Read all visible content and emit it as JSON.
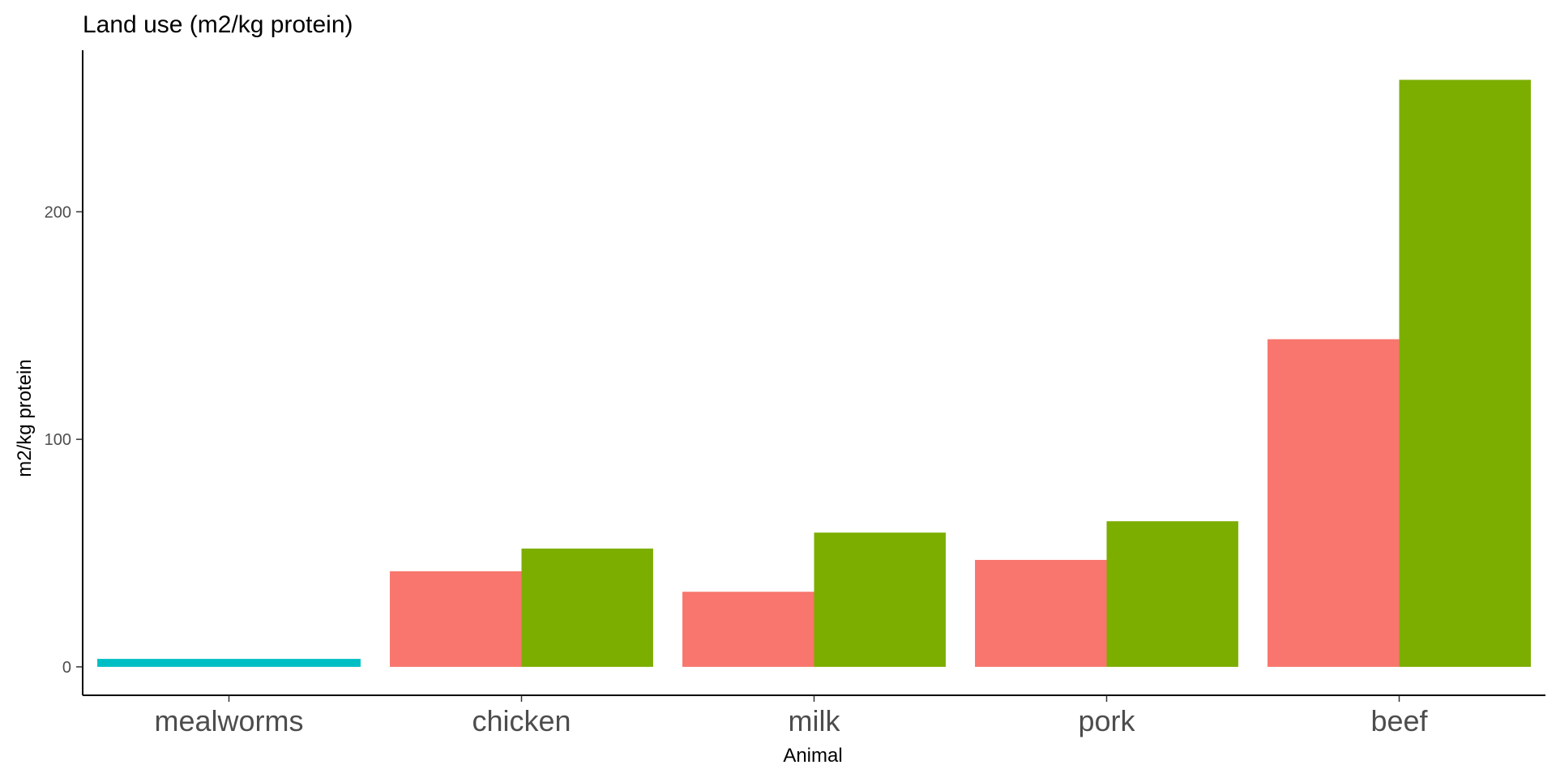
{
  "chart_data": {
    "type": "bar",
    "title": "Land use (m2/kg protein)",
    "xlabel": "Animal",
    "ylabel": "m2/kg protein",
    "categories": [
      "mealworms",
      "chicken",
      "milk",
      "pork",
      "beef"
    ],
    "ylim": [
      -12.5,
      271
    ],
    "yticks": [
      0,
      100,
      200
    ],
    "grid": false,
    "legend": "none",
    "series": [
      {
        "color": "#F8766D",
        "values": [
          null,
          42,
          33,
          47,
          144
        ]
      },
      {
        "color": "#7CAE00",
        "values": [
          null,
          52,
          59,
          64,
          258
        ]
      },
      {
        "color": "#00BFC4",
        "values": [
          3.5,
          null,
          null,
          null,
          null
        ]
      }
    ]
  }
}
